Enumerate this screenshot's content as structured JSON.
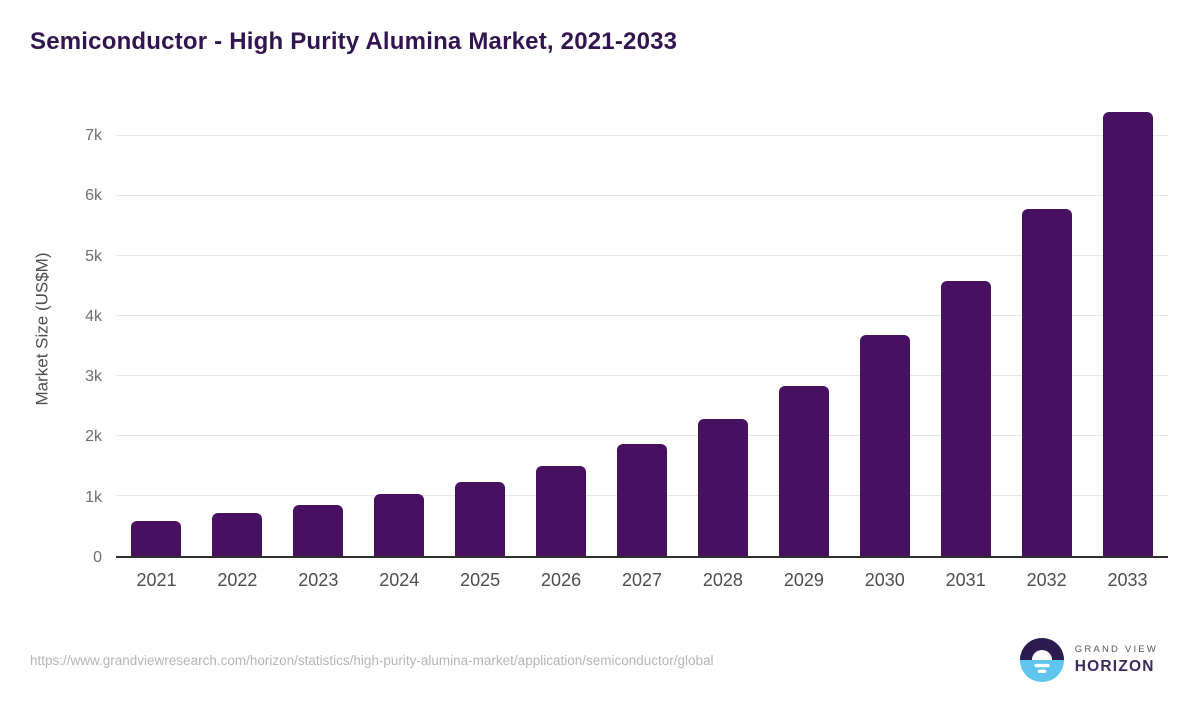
{
  "header": {
    "title": "Semiconductor - High Purity Alumina Market, 2021-2033"
  },
  "chart_data": {
    "type": "bar",
    "title": "Semiconductor - High Purity Alumina Market, 2021-2033",
    "categories": [
      "2021",
      "2022",
      "2023",
      "2024",
      "2025",
      "2026",
      "2027",
      "2028",
      "2029",
      "2030",
      "2031",
      "2032",
      "2033"
    ],
    "values": [
      580,
      710,
      850,
      1030,
      1240,
      1500,
      1860,
      2290,
      2840,
      3690,
      4580,
      5790,
      7400
    ],
    "xlabel": "",
    "ylabel": "Market Size (US$M)",
    "ylim": [
      0,
      7600
    ],
    "ytick_values": [
      0,
      1000,
      2000,
      3000,
      4000,
      5000,
      6000,
      7000
    ],
    "ytick_labels": [
      "0",
      "1k",
      "2k",
      "3k",
      "4k",
      "5k",
      "6k",
      "7k"
    ],
    "grid": "horizontal",
    "legend": "none",
    "bar_color": "#471061"
  },
  "footer": {
    "source_url": "https://www.grandviewresearch.com/horizon/statistics/high-purity-alumina-market/application/semiconductor/global",
    "brand": {
      "line1": "GRAND VIEW",
      "line2": "HORIZON"
    }
  },
  "colors": {
    "title": "#32154f",
    "bar": "#471061",
    "gridline": "#e7e7e7",
    "axis_line": "#2e2e2e",
    "y_tick_label": "#6e6e6e",
    "x_tick_label": "#4d4d4d",
    "source_url": "#b5b5b5",
    "logo_dark_half": "#2b1b4e",
    "logo_blue_half": "#5ec6ee"
  }
}
